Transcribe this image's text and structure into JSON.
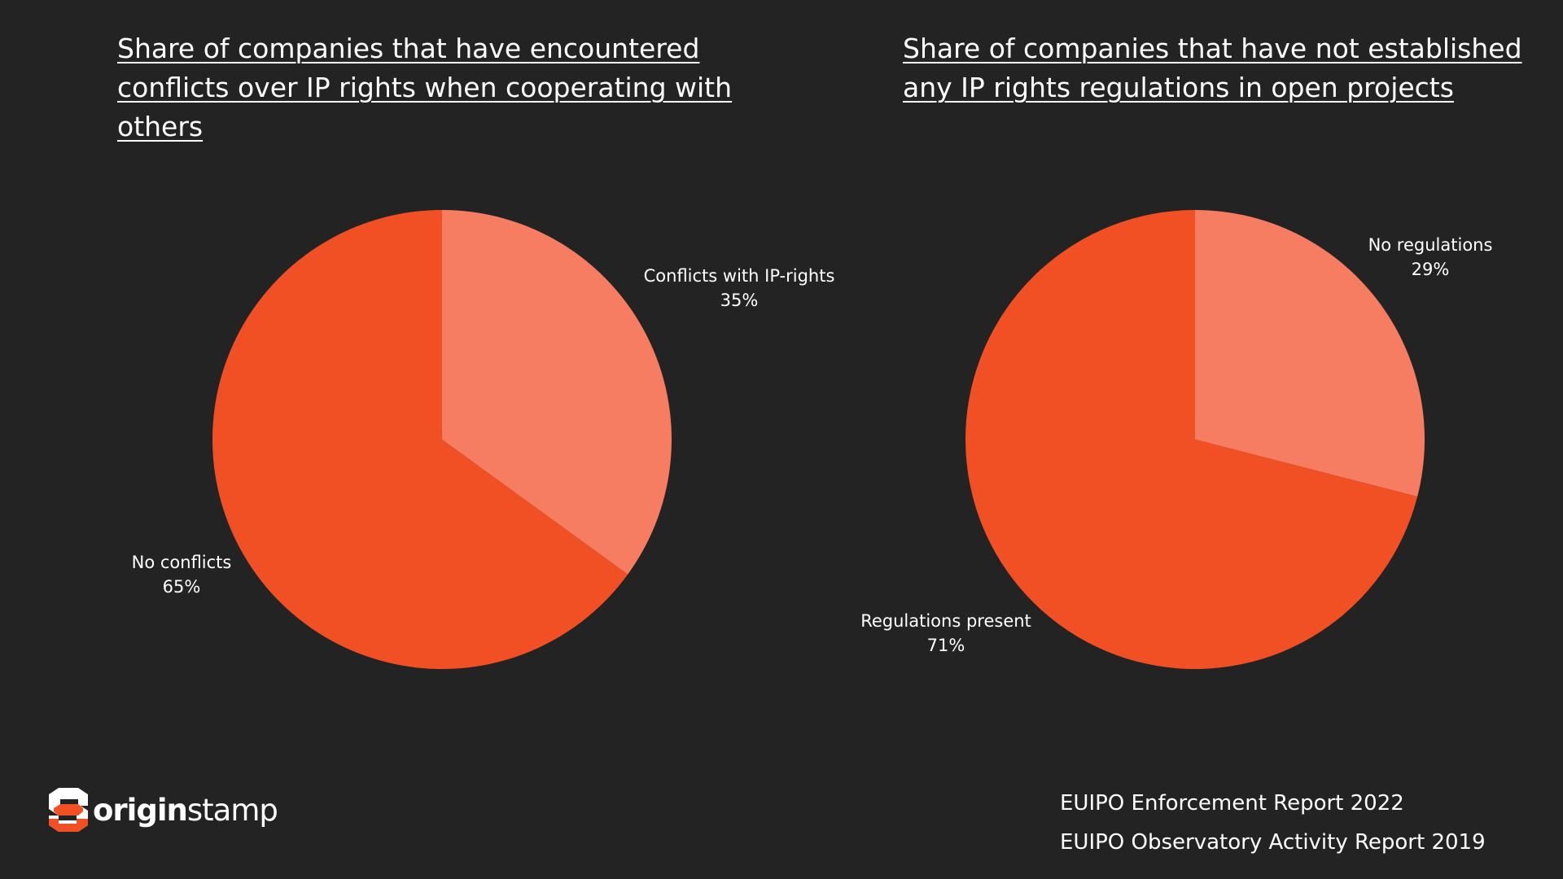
{
  "chart_data": [
    {
      "type": "pie",
      "title": "Share of companies that have encountered conflicts over IP rights when cooperating with others",
      "slices": [
        {
          "label": "Conflicts with IP-rights",
          "value": 35,
          "value_label": "35%",
          "color": "#f67d62"
        },
        {
          "label": "No conflicts",
          "value": 65,
          "value_label": "65%",
          "color": "#f15025"
        }
      ]
    },
    {
      "type": "pie",
      "title": "Share of companies that have not established any IP rights regulations in open projects",
      "slices": [
        {
          "label": "No regulations",
          "value": 29,
          "value_label": "29%",
          "color": "#f67d62"
        },
        {
          "label": "Regulations present",
          "value": 71,
          "value_label": "71%",
          "color": "#f15025"
        }
      ]
    }
  ],
  "colors": {
    "background": "#232323",
    "accent": "#f15025",
    "accent_light": "#f67d62"
  },
  "logo": {
    "icon": "originstamp-logo-icon",
    "text_bold": "origin",
    "text_regular": "stamp"
  },
  "sources": [
    "EUIPO Enforcement Report 2022",
    "EUIPO Observatory Activity Report 2019"
  ]
}
